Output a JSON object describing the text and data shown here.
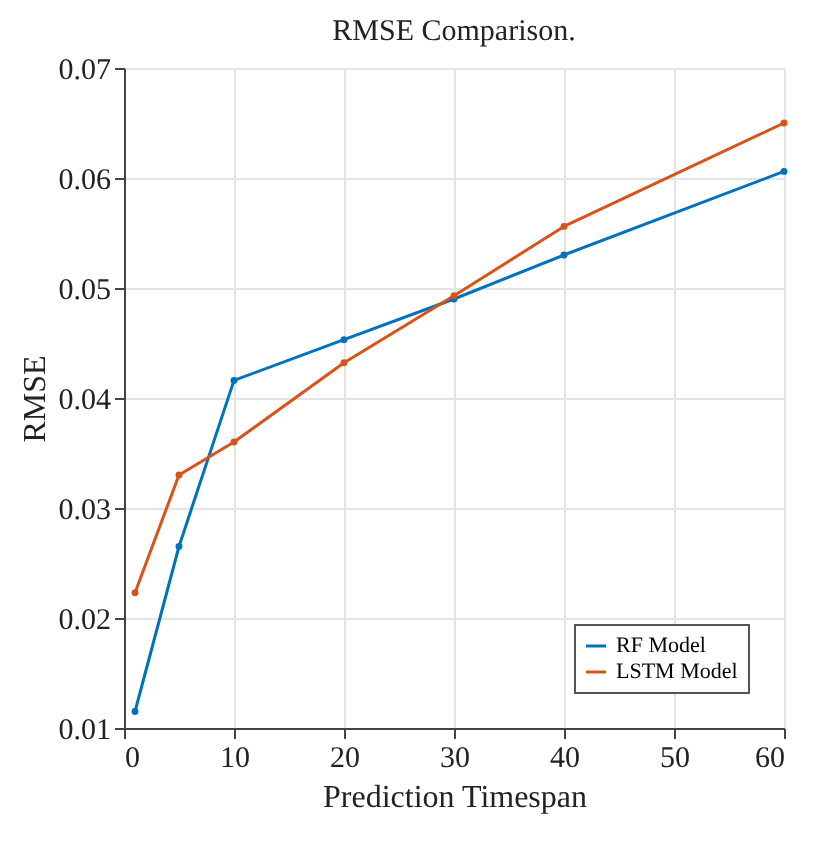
{
  "chart_data": {
    "type": "line",
    "title": "RMSE Comparison.",
    "xlabel": "Prediction Timespan",
    "ylabel": "RMSE",
    "x": [
      1,
      5,
      10,
      20,
      30,
      40,
      60
    ],
    "series": [
      {
        "name": "RF Model",
        "color": "#0072bd",
        "values": [
          0.0115,
          0.0265,
          0.0416,
          0.0453,
          0.049,
          0.053,
          0.0606
        ]
      },
      {
        "name": "LSTM Model",
        "color": "#d95319",
        "values": [
          0.0223,
          0.033,
          0.036,
          0.0432,
          0.0493,
          0.0556,
          0.065
        ]
      }
    ],
    "xlim": [
      0,
      60
    ],
    "xticks": [
      0,
      10,
      20,
      30,
      40,
      50,
      60
    ],
    "ylim": [
      0.01,
      0.07
    ],
    "yticks": [
      0.01,
      0.02,
      0.03,
      0.04,
      0.05,
      0.06,
      0.07
    ],
    "grid": true,
    "legend": "bottom right",
    "marker": "circle",
    "line_style": "solid"
  }
}
